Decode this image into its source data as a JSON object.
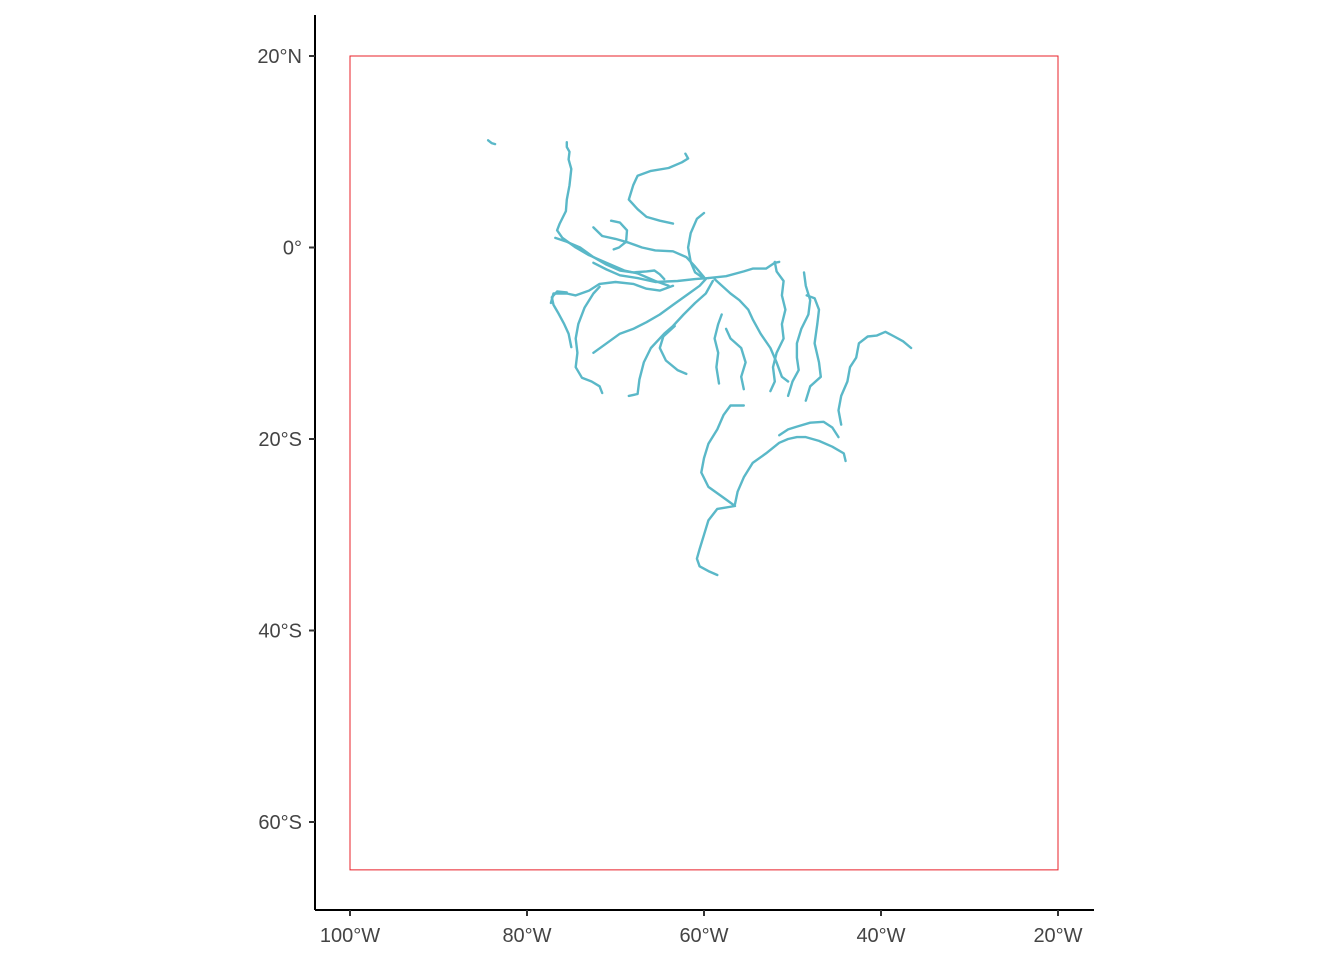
{
  "map": {
    "type": "river-map",
    "colors": {
      "rivers": "#5ab8c8",
      "bounding_box": "#e8202a",
      "axis": "#000000",
      "tick_label": "#444444"
    },
    "bounding_box": {
      "lon": [
        -100,
        -20
      ],
      "lat": [
        -65,
        20
      ]
    },
    "x_axis": {
      "ticks": [
        {
          "value": -100,
          "label": "100°W"
        },
        {
          "value": -80,
          "label": "80°W"
        },
        {
          "value": -60,
          "label": "60°W"
        },
        {
          "value": -40,
          "label": "40°W"
        },
        {
          "value": -20,
          "label": "20°W"
        }
      ]
    },
    "y_axis": {
      "ticks": [
        {
          "value": 20,
          "label": "20°N"
        },
        {
          "value": 0,
          "label": "0°"
        },
        {
          "value": -20,
          "label": "20°S"
        },
        {
          "value": -40,
          "label": "40°S"
        },
        {
          "value": -60,
          "label": "60°S"
        }
      ]
    },
    "rivers": [
      {
        "id": "magdalena-fragment",
        "points": [
          [
            -84.4,
            11.2
          ],
          [
            -84.0,
            10.9
          ],
          [
            -83.6,
            10.8
          ]
        ]
      },
      {
        "id": "napo-maranon",
        "points": [
          [
            -75.5,
            11.0
          ],
          [
            -75.5,
            10.5
          ],
          [
            -75.2,
            10.0
          ],
          [
            -75.3,
            9.2
          ],
          [
            -75.0,
            8.2
          ],
          [
            -75.2,
            6.5
          ],
          [
            -75.5,
            5.0
          ],
          [
            -75.6,
            3.8
          ],
          [
            -76.3,
            2.5
          ],
          [
            -76.6,
            1.8
          ],
          [
            -76.0,
            1.0
          ],
          [
            -74.5,
            0.0
          ],
          [
            -73.0,
            -0.8
          ],
          [
            -71.0,
            -1.6
          ],
          [
            -69.0,
            -2.4
          ],
          [
            -67.5,
            -2.7
          ],
          [
            -65.5,
            -3.5
          ],
          [
            -64.0,
            -4.0
          ]
        ]
      },
      {
        "id": "orinoco",
        "points": [
          [
            -62.1,
            9.8
          ],
          [
            -61.8,
            9.3
          ],
          [
            -62.5,
            8.9
          ],
          [
            -64.0,
            8.3
          ],
          [
            -66.0,
            8.0
          ],
          [
            -67.5,
            7.5
          ],
          [
            -68.0,
            6.5
          ],
          [
            -68.5,
            5.0
          ],
          [
            -67.5,
            4.0
          ],
          [
            -66.5,
            3.2
          ],
          [
            -65.0,
            2.8
          ],
          [
            -63.5,
            2.5
          ]
        ]
      },
      {
        "id": "negro",
        "points": [
          [
            -72.5,
            2.1
          ],
          [
            -71.5,
            1.2
          ],
          [
            -70.0,
            0.9
          ],
          [
            -68.5,
            0.5
          ],
          [
            -67.0,
            0.0
          ],
          [
            -65.5,
            -0.3
          ],
          [
            -63.5,
            -0.4
          ],
          [
            -62.0,
            -1.0
          ],
          [
            -61.0,
            -2.0
          ],
          [
            -60.0,
            -3.1
          ]
        ]
      },
      {
        "id": "guaviare",
        "points": [
          [
            -70.5,
            2.8
          ],
          [
            -69.5,
            2.6
          ],
          [
            -68.7,
            1.8
          ],
          [
            -68.8,
            0.6
          ],
          [
            -69.6,
            0.0
          ],
          [
            -70.2,
            -0.2
          ]
        ]
      },
      {
        "id": "branco",
        "points": [
          [
            -60.0,
            3.6
          ],
          [
            -60.8,
            3.0
          ],
          [
            -61.5,
            1.5
          ],
          [
            -61.8,
            0.0
          ],
          [
            -61.5,
            -1.5
          ],
          [
            -61.0,
            -2.6
          ],
          [
            -60.2,
            -3.1
          ]
        ]
      },
      {
        "id": "putumayo-japura",
        "points": [
          [
            -76.8,
            1.0
          ],
          [
            -75.5,
            0.6
          ],
          [
            -74.0,
            0.0
          ],
          [
            -72.5,
            -1.0
          ],
          [
            -71.0,
            -1.8
          ],
          [
            -69.5,
            -2.4
          ],
          [
            -68.0,
            -2.6
          ],
          [
            -66.5,
            -2.5
          ],
          [
            -65.6,
            -2.4
          ],
          [
            -65.0,
            -2.8
          ],
          [
            -64.5,
            -3.3
          ]
        ]
      },
      {
        "id": "jurua-purus",
        "points": [
          [
            -72.5,
            -1.6
          ],
          [
            -71.0,
            -2.3
          ],
          [
            -69.5,
            -2.9
          ],
          [
            -67.5,
            -3.2
          ],
          [
            -65.5,
            -3.6
          ],
          [
            -63.0,
            -3.5
          ],
          [
            -61.0,
            -3.3
          ],
          [
            -59.5,
            -3.2
          ]
        ]
      },
      {
        "id": "amazon-main",
        "points": [
          [
            -59.5,
            -3.2
          ],
          [
            -57.5,
            -3.0
          ],
          [
            -55.5,
            -2.5
          ],
          [
            -54.5,
            -2.2
          ],
          [
            -53.0,
            -2.2
          ],
          [
            -52.0,
            -1.6
          ],
          [
            -51.5,
            -1.5
          ]
        ]
      },
      {
        "id": "ucayali",
        "points": [
          [
            -77.3,
            -5.8
          ],
          [
            -77.0,
            -4.8
          ],
          [
            -75.5,
            -4.8
          ],
          [
            -74.5,
            -5.0
          ],
          [
            -73.0,
            -4.5
          ],
          [
            -71.8,
            -3.8
          ],
          [
            -70.0,
            -3.6
          ],
          [
            -68.0,
            -3.8
          ],
          [
            -66.5,
            -4.3
          ],
          [
            -65.0,
            -4.5
          ],
          [
            -63.5,
            -4.0
          ]
        ]
      },
      {
        "id": "maranon-upper",
        "points": [
          [
            -75.0,
            -10.4
          ],
          [
            -75.3,
            -9.0
          ],
          [
            -75.8,
            -8.0
          ],
          [
            -76.5,
            -6.8
          ],
          [
            -77.0,
            -6.0
          ],
          [
            -77.2,
            -5.2
          ],
          [
            -76.6,
            -4.6
          ],
          [
            -75.5,
            -4.7
          ]
        ]
      },
      {
        "id": "ucayali-lower",
        "points": [
          [
            -71.5,
            -15.2
          ],
          [
            -71.8,
            -14.5
          ],
          [
            -72.7,
            -14.0
          ],
          [
            -73.8,
            -13.6
          ],
          [
            -74.5,
            -12.5
          ],
          [
            -74.3,
            -11.0
          ],
          [
            -74.5,
            -9.5
          ],
          [
            -74.2,
            -8.0
          ],
          [
            -73.5,
            -6.3
          ],
          [
            -72.5,
            -4.8
          ],
          [
            -71.8,
            -4.1
          ]
        ]
      },
      {
        "id": "purus",
        "points": [
          [
            -72.5,
            -11.0
          ],
          [
            -71.0,
            -10.0
          ],
          [
            -69.5,
            -9.0
          ],
          [
            -68.0,
            -8.5
          ],
          [
            -66.5,
            -7.8
          ],
          [
            -65.0,
            -7.0
          ],
          [
            -63.5,
            -6.0
          ],
          [
            -62.0,
            -5.0
          ],
          [
            -60.5,
            -4.0
          ],
          [
            -59.8,
            -3.3
          ]
        ]
      },
      {
        "id": "madeira",
        "points": [
          [
            -68.5,
            -15.5
          ],
          [
            -67.5,
            -15.3
          ],
          [
            -67.3,
            -13.8
          ],
          [
            -66.8,
            -12.0
          ],
          [
            -66.0,
            -10.5
          ],
          [
            -64.5,
            -9.0
          ],
          [
            -63.5,
            -8.2
          ],
          [
            -62.3,
            -7.0
          ],
          [
            -61.0,
            -5.8
          ],
          [
            -59.8,
            -4.8
          ],
          [
            -59.0,
            -3.5
          ]
        ]
      },
      {
        "id": "mamore",
        "points": [
          [
            -62.0,
            -13.2
          ],
          [
            -63.0,
            -12.8
          ],
          [
            -64.3,
            -11.8
          ],
          [
            -65.0,
            -10.5
          ],
          [
            -64.6,
            -9.3
          ],
          [
            -63.3,
            -8.2
          ]
        ]
      },
      {
        "id": "tapajos",
        "points": [
          [
            -58.8,
            -3.3
          ],
          [
            -57.0,
            -4.8
          ],
          [
            -56.0,
            -5.5
          ],
          [
            -55.0,
            -6.5
          ],
          [
            -54.5,
            -7.5
          ],
          [
            -53.6,
            -9.0
          ],
          [
            -52.5,
            -10.5
          ],
          [
            -51.8,
            -12.0
          ],
          [
            -51.2,
            -13.5
          ],
          [
            -50.5,
            -14.0
          ]
        ]
      },
      {
        "id": "teles-pires",
        "points": [
          [
            -58.3,
            -14.2
          ],
          [
            -58.6,
            -12.5
          ],
          [
            -58.4,
            -11.0
          ],
          [
            -58.8,
            -9.5
          ],
          [
            -58.4,
            -8.0
          ],
          [
            -58.0,
            -7.0
          ]
        ]
      },
      {
        "id": "juruena",
        "points": [
          [
            -55.5,
            -14.8
          ],
          [
            -55.8,
            -13.5
          ],
          [
            -55.3,
            -12.0
          ],
          [
            -55.8,
            -10.5
          ],
          [
            -57.0,
            -9.5
          ],
          [
            -57.5,
            -8.5
          ]
        ]
      },
      {
        "id": "xingu",
        "points": [
          [
            -52.0,
            -1.5
          ],
          [
            -51.8,
            -2.5
          ],
          [
            -51.0,
            -3.5
          ],
          [
            -51.2,
            -5.0
          ],
          [
            -50.8,
            -6.5
          ],
          [
            -51.2,
            -8.0
          ],
          [
            -51.0,
            -9.5
          ],
          [
            -51.8,
            -11.0
          ],
          [
            -52.2,
            -12.5
          ],
          [
            -52.0,
            -14.0
          ],
          [
            -52.5,
            -15.0
          ]
        ]
      },
      {
        "id": "tocantins",
        "points": [
          [
            -48.7,
            -2.6
          ],
          [
            -48.5,
            -4.0
          ],
          [
            -48.0,
            -5.5
          ],
          [
            -48.2,
            -7.0
          ],
          [
            -49.0,
            -8.5
          ],
          [
            -49.5,
            -10.0
          ],
          [
            -49.5,
            -11.5
          ],
          [
            -49.3,
            -12.8
          ],
          [
            -50.0,
            -14.0
          ],
          [
            -50.5,
            -15.5
          ]
        ]
      },
      {
        "id": "araguaia",
        "points": [
          [
            -48.4,
            -5.0
          ],
          [
            -47.5,
            -5.3
          ],
          [
            -47.0,
            -6.5
          ],
          [
            -47.2,
            -8.0
          ],
          [
            -47.5,
            -10.0
          ],
          [
            -47.0,
            -12.0
          ],
          [
            -46.8,
            -13.5
          ],
          [
            -48.0,
            -14.5
          ],
          [
            -48.5,
            -16.0
          ]
        ]
      },
      {
        "id": "sao-francisco",
        "points": [
          [
            -36.6,
            -10.5
          ],
          [
            -37.5,
            -9.8
          ],
          [
            -38.5,
            -9.3
          ],
          [
            -39.5,
            -8.8
          ],
          [
            -40.5,
            -9.2
          ],
          [
            -41.5,
            -9.3
          ],
          [
            -42.5,
            -10.0
          ],
          [
            -42.8,
            -11.5
          ],
          [
            -43.5,
            -12.5
          ],
          [
            -43.8,
            -14.0
          ],
          [
            -44.5,
            -15.5
          ],
          [
            -44.8,
            -17.0
          ],
          [
            -44.5,
            -18.5
          ]
        ]
      },
      {
        "id": "sao-francisco-upper",
        "points": [
          [
            -44.0,
            -22.3
          ],
          [
            -44.2,
            -21.5
          ],
          [
            -45.5,
            -20.8
          ],
          [
            -47.0,
            -20.2
          ],
          [
            -48.5,
            -19.8
          ],
          [
            -49.5,
            -19.8
          ],
          [
            -50.5,
            -20.0
          ],
          [
            -51.5,
            -20.4
          ],
          [
            -53.0,
            -21.5
          ],
          [
            -54.5,
            -22.5
          ],
          [
            -55.5,
            -24.0
          ],
          [
            -56.2,
            -25.5
          ],
          [
            -56.5,
            -26.8
          ]
        ]
      },
      {
        "id": "parana-tiete",
        "points": [
          [
            -44.8,
            -19.8
          ],
          [
            -45.5,
            -18.8
          ],
          [
            -46.5,
            -18.2
          ],
          [
            -48.0,
            -18.3
          ],
          [
            -49.5,
            -18.7
          ],
          [
            -50.5,
            -19.0
          ],
          [
            -51.5,
            -19.6
          ]
        ]
      },
      {
        "id": "paraguay-parana",
        "points": [
          [
            -58.5,
            -34.2
          ],
          [
            -59.5,
            -33.8
          ],
          [
            -60.5,
            -33.3
          ],
          [
            -60.8,
            -32.5
          ],
          [
            -60.5,
            -31.5
          ],
          [
            -60.0,
            -30.0
          ],
          [
            -59.5,
            -28.5
          ],
          [
            -58.5,
            -27.3
          ],
          [
            -56.5,
            -27.0
          ],
          [
            -58.0,
            -26.0
          ],
          [
            -59.5,
            -25.0
          ],
          [
            -60.3,
            -23.5
          ],
          [
            -60.0,
            -22.0
          ],
          [
            -59.5,
            -20.5
          ],
          [
            -58.5,
            -19.0
          ],
          [
            -57.8,
            -17.5
          ],
          [
            -57.0,
            -16.5
          ],
          [
            -55.5,
            -16.5
          ]
        ]
      }
    ]
  }
}
